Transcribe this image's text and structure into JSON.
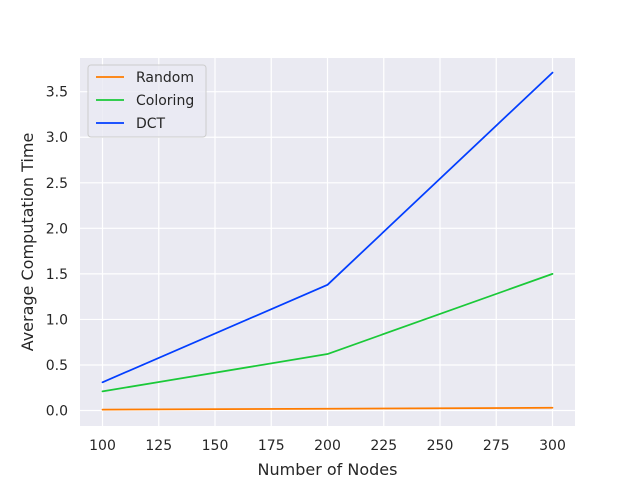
{
  "chart_data": {
    "type": "line",
    "title": "",
    "xlabel": "Number of Nodes",
    "ylabel": "Average Computation Time",
    "x": [
      100,
      200,
      300
    ],
    "xlim": [
      90,
      310
    ],
    "ylim": [
      -0.17,
      3.87
    ],
    "xticks": [
      100,
      125,
      150,
      175,
      200,
      225,
      250,
      275,
      300
    ],
    "xtick_labels": [
      "100",
      "125",
      "150",
      "175",
      "200",
      "225",
      "250",
      "275",
      "300"
    ],
    "yticks": [
      0.0,
      0.5,
      1.0,
      1.5,
      2.0,
      2.5,
      3.0,
      3.5
    ],
    "ytick_labels": [
      "0.0",
      "0.5",
      "1.0",
      "1.5",
      "2.0",
      "2.5",
      "3.0",
      "3.5"
    ],
    "grid": true,
    "legend_position": "top-left",
    "series": [
      {
        "name": "Random",
        "color": "#ff7c00",
        "values": [
          0.01,
          0.02,
          0.03
        ]
      },
      {
        "name": "Coloring",
        "color": "#1ac938",
        "values": [
          0.21,
          0.62,
          1.5
        ]
      },
      {
        "name": "DCT",
        "color": "#023eff",
        "values": [
          0.31,
          1.38,
          3.71
        ]
      }
    ]
  }
}
